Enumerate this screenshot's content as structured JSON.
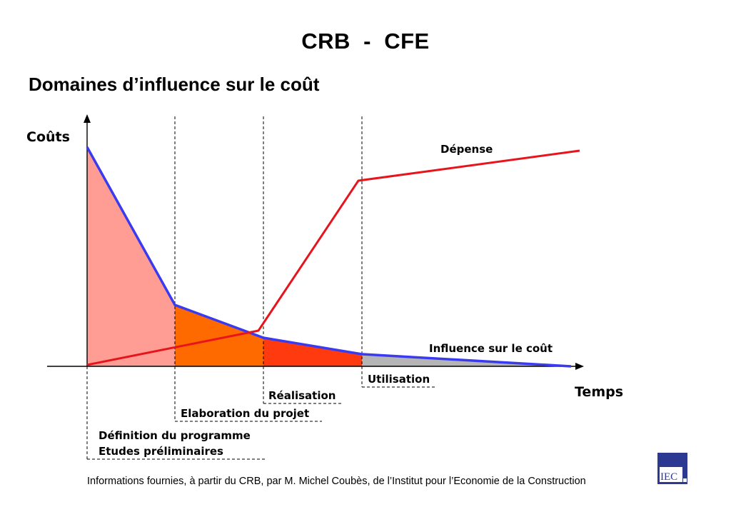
{
  "title": "CRB  -  CFE",
  "subtitle": "Domaines d’influence sur le coût",
  "diagram": {
    "y_axis_label": "Coûts",
    "x_axis_label": "Temps",
    "curves": {
      "spending_label": "Dépense",
      "influence_label": "Influence sur le coût"
    },
    "phases": {
      "utilisation": "Utilisation",
      "realisation": "Réalisation",
      "elaboration": "Elaboration du projet",
      "definition_line1": "Définition du programme",
      "definition_line2": "Etudes préliminaires"
    },
    "colors": {
      "influence_line": "#3a3af0",
      "spending_line": "#e8141c",
      "zone_definition": "#ff9d94",
      "zone_elaboration": "#ff6a00",
      "zone_realisation": "#ff3a0e",
      "zone_utilisation": "#b5b5b5"
    }
  },
  "footer": "Informations fournies, à partir du CRB,  par M. Michel Coubès, de l’Institut pour l’Economie de la Construction",
  "logo": {
    "text": "IEC",
    "icon": "iec-logo-icon"
  }
}
